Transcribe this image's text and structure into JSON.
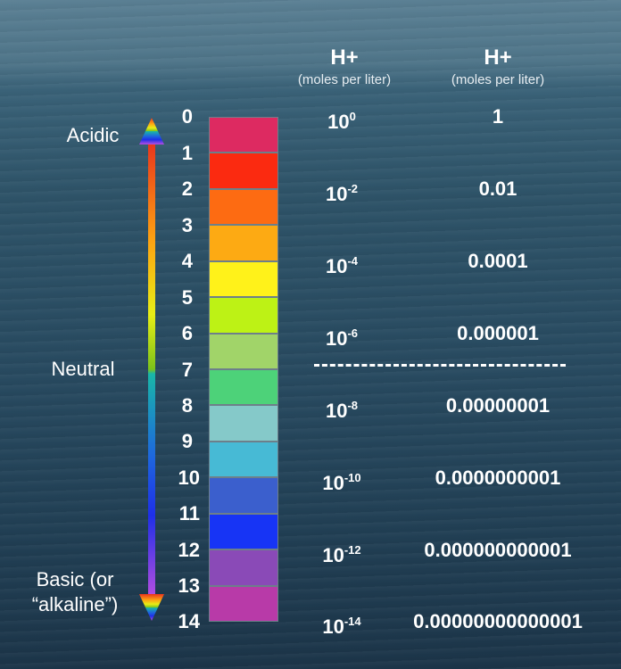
{
  "headers": [
    {
      "title": "H+",
      "unit": "(moles per liter)"
    },
    {
      "title": "H+",
      "unit": "(moles per liter)"
    }
  ],
  "labels": {
    "acidic": "Acidic",
    "neutral": "Neutral",
    "basic_line1": "Basic (or",
    "basic_line2": "“alkaline”)"
  },
  "scale": [
    {
      "ph": "0",
      "color": "#dd2a61"
    },
    {
      "ph": "1",
      "color": "#fb2a10"
    },
    {
      "ph": "2",
      "color": "#fd6b12"
    },
    {
      "ph": "3",
      "color": "#fdaa13"
    },
    {
      "ph": "4",
      "color": "#fff21a"
    },
    {
      "ph": "5",
      "color": "#bdf215"
    },
    {
      "ph": "6",
      "color": "#a1d469"
    },
    {
      "ph": "7",
      "color": "#4dd279"
    },
    {
      "ph": "8",
      "color": "#85c9c9"
    },
    {
      "ph": "9",
      "color": "#47bad5"
    },
    {
      "ph": "10",
      "color": "#3b5fcd"
    },
    {
      "ph": "11",
      "color": "#1734f5"
    },
    {
      "ph": "12",
      "color": "#8a4ab7"
    },
    {
      "ph": "13",
      "color": "#b83aa8"
    },
    {
      "ph": "14",
      "color": "#c03cbb"
    }
  ],
  "concentrations": [
    {
      "ph": "0",
      "base": "10",
      "exp": "0",
      "decimal": "1"
    },
    {
      "ph": "2",
      "base": "10",
      "exp": "-2",
      "decimal": "0.01"
    },
    {
      "ph": "4",
      "base": "10",
      "exp": "-4",
      "decimal": "0.0001"
    },
    {
      "ph": "6",
      "base": "10",
      "exp": "-6",
      "decimal": "0.000001"
    },
    {
      "ph": "8",
      "base": "10",
      "exp": "-8",
      "decimal": "0.00000001"
    },
    {
      "ph": "10",
      "base": "10",
      "exp": "-10",
      "decimal": "0.0000000001"
    },
    {
      "ph": "12",
      "base": "10",
      "exp": "-12",
      "decimal": "0.000000000001"
    },
    {
      "ph": "14",
      "base": "10",
      "exp": "-14",
      "decimal": "0.00000000000001"
    }
  ],
  "arrow_colors": {
    "top": "#e8331d",
    "upper_mid": "#fda312",
    "middle": "#e8ee16",
    "neutral_green": "#7cc21a",
    "neutral_cyan": "#19b7a8",
    "lower_mid": "#1e63e0",
    "lower": "#1e2fe8",
    "bottom": "#b74ee0"
  }
}
